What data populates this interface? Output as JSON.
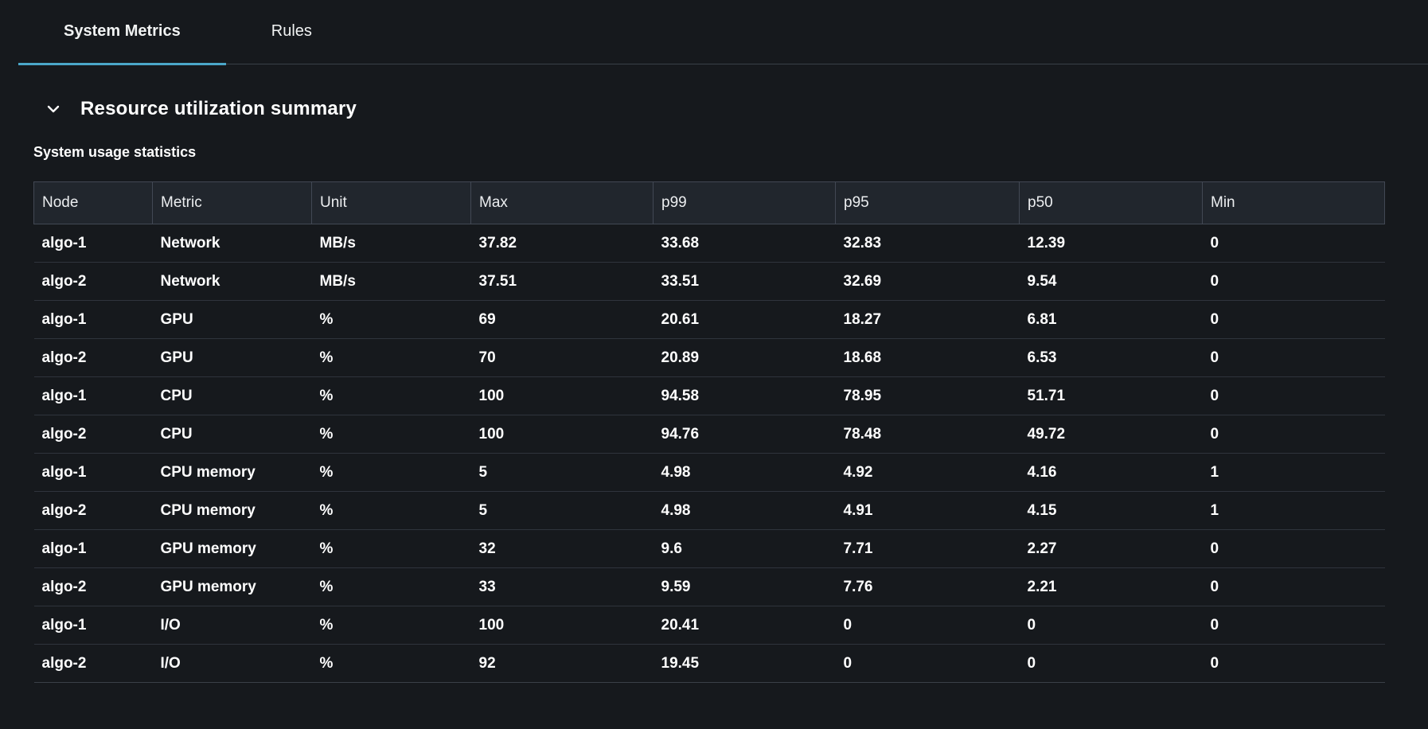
{
  "colors": {
    "accent": "#4ba7c9"
  },
  "icons": {
    "section_toggle": "chevron-down"
  },
  "tabs": [
    {
      "label": "System Metrics",
      "active": true
    },
    {
      "label": "Rules",
      "active": false
    }
  ],
  "section": {
    "title": "Resource utilization summary",
    "subtitle": "System usage statistics"
  },
  "table": {
    "columns": [
      "Node",
      "Metric",
      "Unit",
      "Max",
      "p99",
      "p95",
      "p50",
      "Min"
    ],
    "rows": [
      [
        "algo-1",
        "Network",
        "MB/s",
        "37.82",
        "33.68",
        "32.83",
        "12.39",
        "0"
      ],
      [
        "algo-2",
        "Network",
        "MB/s",
        "37.51",
        "33.51",
        "32.69",
        "9.54",
        "0"
      ],
      [
        "algo-1",
        "GPU",
        "%",
        "69",
        "20.61",
        "18.27",
        "6.81",
        "0"
      ],
      [
        "algo-2",
        "GPU",
        "%",
        "70",
        "20.89",
        "18.68",
        "6.53",
        "0"
      ],
      [
        "algo-1",
        "CPU",
        "%",
        "100",
        "94.58",
        "78.95",
        "51.71",
        "0"
      ],
      [
        "algo-2",
        "CPU",
        "%",
        "100",
        "94.76",
        "78.48",
        "49.72",
        "0"
      ],
      [
        "algo-1",
        "CPU memory",
        "%",
        "5",
        "4.98",
        "4.92",
        "4.16",
        "1"
      ],
      [
        "algo-2",
        "CPU memory",
        "%",
        "5",
        "4.98",
        "4.91",
        "4.15",
        "1"
      ],
      [
        "algo-1",
        "GPU memory",
        "%",
        "32",
        "9.6",
        "7.71",
        "2.27",
        "0"
      ],
      [
        "algo-2",
        "GPU memory",
        "%",
        "33",
        "9.59",
        "7.76",
        "2.21",
        "0"
      ],
      [
        "algo-1",
        "I/O",
        "%",
        "100",
        "20.41",
        "0",
        "0",
        "0"
      ],
      [
        "algo-2",
        "I/O",
        "%",
        "92",
        "19.45",
        "0",
        "0",
        "0"
      ]
    ]
  }
}
